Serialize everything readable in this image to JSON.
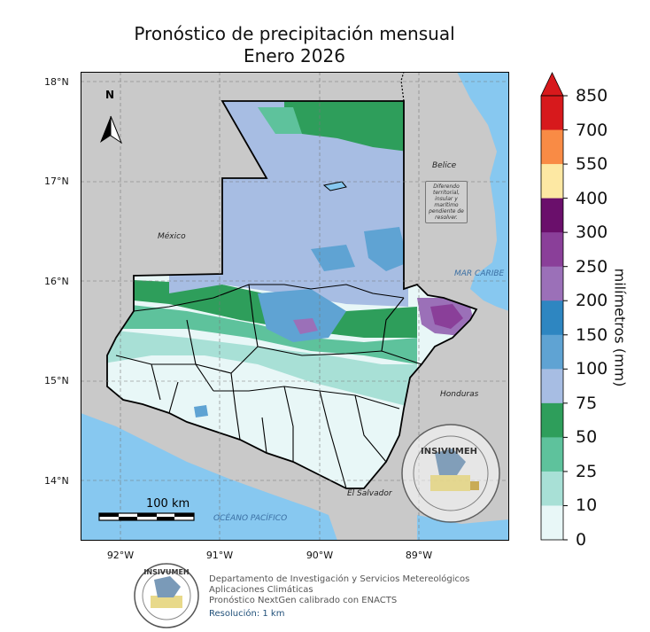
{
  "title_line1": "Pronóstico de precipitación mensual",
  "title_line2": "Enero 2026",
  "lat_ticks": [
    "18°N",
    "17°N",
    "16°N",
    "15°N",
    "14°N"
  ],
  "lon_ticks": [
    "92°W",
    "91°W",
    "90°W",
    "89°W"
  ],
  "legend": {
    "unit_label": "milímetros (mm)",
    "ticks": [
      "850",
      "700",
      "550",
      "400",
      "300",
      "250",
      "200",
      "150",
      "100",
      "75",
      "50",
      "25",
      "10",
      "0"
    ],
    "colors": [
      "#d7191c",
      "#f98b45",
      "#fde8a3",
      "#6a0f6b",
      "#8a3f99",
      "#9b70b8",
      "#2e86c1",
      "#5fa3d3",
      "#a7bde3",
      "#2e9e5b",
      "#5ec29c",
      "#a8e0d6",
      "#e8f7f7"
    ]
  },
  "map_labels": {
    "mexico": "México",
    "belice": "Belice",
    "honduras": "Honduras",
    "el_salvador": "El Salvador",
    "mar_caribe": "MAR CARIBE",
    "oceano": "OCÉANO PACÍFICO",
    "dispute_note": "Diferendo territorial, insular y marítimo pendiente de resolver."
  },
  "north_label": "N",
  "scale_label": "100 km",
  "logo_text": "INSIVUMEH",
  "footer": {
    "line1": "Departamento de Investigación y Servicios Metereológicos",
    "line2": "Aplicaciones Climáticas",
    "line3": "Pronóstico NextGen calibrado con ENACTS",
    "line4": "Resolución: 1 km"
  }
}
